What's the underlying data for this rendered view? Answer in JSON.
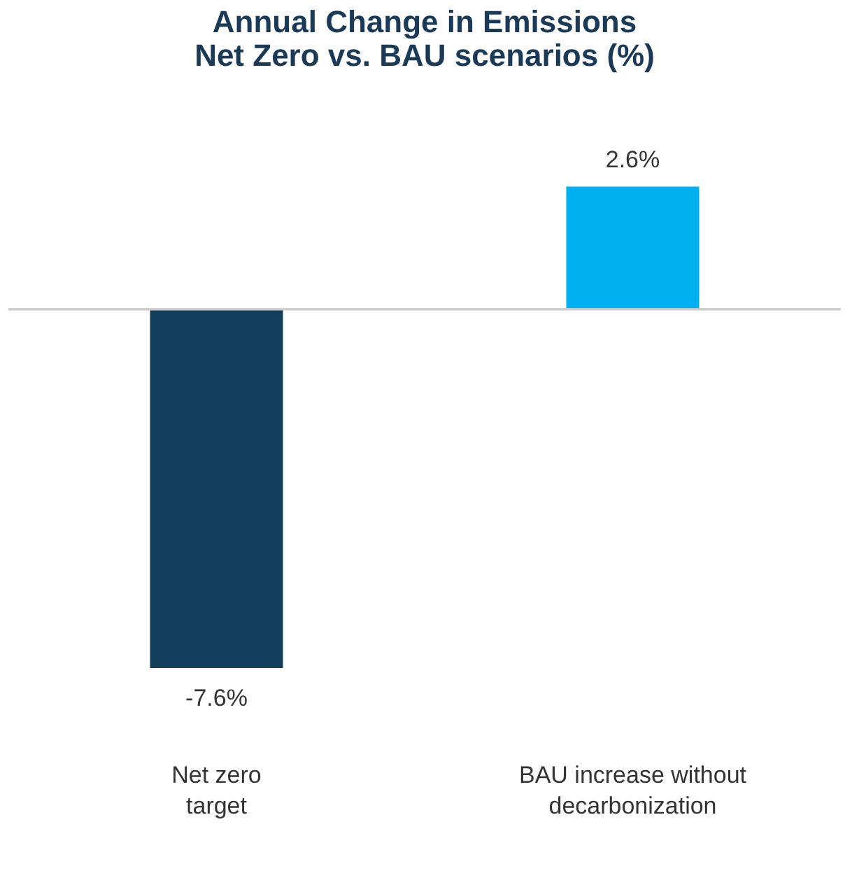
{
  "chart_data": {
    "type": "bar",
    "title": "Annual Change in Emissions\nNet Zero vs. BAU scenarios (%)",
    "categories": [
      "Net zero\ntarget",
      "BAU increase without\ndecarbonization"
    ],
    "values": [
      -7.6,
      2.6
    ],
    "colors": [
      "#143f5c",
      "#00b0f0"
    ],
    "value_labels": [
      "-7.6%",
      "2.6%"
    ]
  }
}
